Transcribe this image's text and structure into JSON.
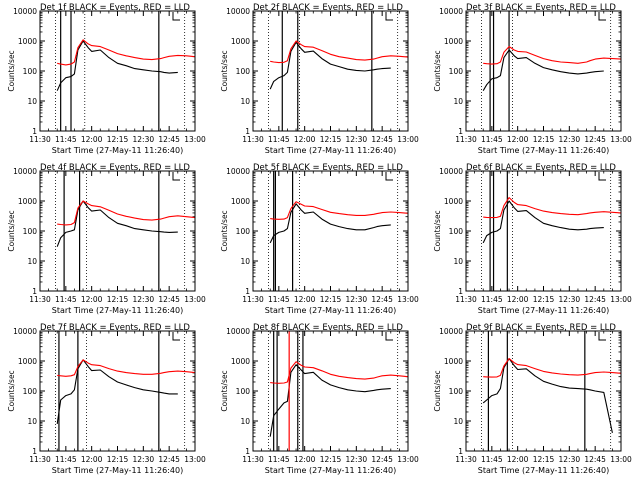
{
  "figure": {
    "xtick_labels": [
      "11:30",
      "11:45",
      "12:00",
      "12:15",
      "12:30",
      "12:45",
      "13:00"
    ],
    "ytick_labels": [
      "1",
      "10",
      "100",
      "1000",
      "10000"
    ],
    "ylabel": "Counts/sec",
    "xlabel": "Start Time (27-May-11 11:26:40)",
    "legend_text": "BLACK = Events, RED = LLD",
    "colors": {
      "events": "#000000",
      "lld": "#ff0000",
      "background": "#ffffff",
      "markers": "#000000"
    }
  },
  "chart_data": [
    {
      "type": "line",
      "title": "Det 1f BLACK = Events, RED = LLD",
      "xlabel": "Start Time (27-May-11 11:26:40)",
      "ylabel": "Counts/sec",
      "x_unit": "minutes after 11:30",
      "yscale": "log",
      "xlim": [
        0,
        90
      ],
      "ylim": [
        1,
        10000
      ],
      "x": [
        10,
        12,
        15,
        18,
        20,
        22,
        25,
        28,
        30,
        35,
        40,
        45,
        50,
        55,
        60,
        65,
        70,
        72,
        75,
        80,
        85,
        90
      ],
      "series": [
        {
          "name": "Events",
          "color": "#000000",
          "values": [
            22,
            40,
            60,
            65,
            80,
            500,
            1000,
            600,
            450,
            500,
            280,
            180,
            150,
            120,
            110,
            100,
            95,
            90,
            85,
            90,
            null,
            null
          ]
        },
        {
          "name": "LLD",
          "color": "#ff0000",
          "values": [
            180,
            170,
            160,
            170,
            200,
            600,
            1100,
            800,
            700,
            650,
            500,
            380,
            320,
            280,
            250,
            240,
            260,
            280,
            310,
            330,
            320,
            300
          ]
        }
      ],
      "vlines_solid": [
        12,
        18,
        69
      ],
      "vlines_dotted": [
        9,
        26,
        84
      ]
    },
    {
      "type": "line",
      "title": "Det 2f BLACK = Events, RED = LLD",
      "xlabel": "Start Time (27-May-11 11:26:40)",
      "ylabel": "Counts/sec",
      "x_unit": "minutes after 11:30",
      "yscale": "log",
      "xlim": [
        0,
        90
      ],
      "ylim": [
        1,
        10000
      ],
      "x": [
        10,
        12,
        15,
        18,
        20,
        22,
        25,
        28,
        30,
        35,
        40,
        45,
        50,
        55,
        60,
        65,
        70,
        72,
        75,
        80,
        85,
        90
      ],
      "series": [
        {
          "name": "Events",
          "color": "#000000",
          "values": [
            25,
            45,
            60,
            70,
            90,
            450,
            900,
            550,
            420,
            460,
            260,
            170,
            140,
            115,
            105,
            100,
            110,
            115,
            120,
            125,
            null,
            null
          ]
        },
        {
          "name": "LLD",
          "color": "#ff0000",
          "values": [
            210,
            200,
            190,
            195,
            220,
            550,
            1000,
            750,
            650,
            620,
            480,
            360,
            300,
            270,
            240,
            230,
            250,
            270,
            300,
            320,
            310,
            290
          ]
        }
      ],
      "vlines_solid": [
        17,
        26,
        69
      ],
      "vlines_dotted": [
        9,
        27,
        84
      ]
    },
    {
      "type": "line",
      "title": "Det 3f BLACK = Events, RED = LLD",
      "xlabel": "Start Time (27-May-11 11:26:40)",
      "ylabel": "Counts/sec",
      "x_unit": "minutes after 11:30",
      "yscale": "log",
      "xlim": [
        0,
        90
      ],
      "ylim": [
        1,
        10000
      ],
      "x": [
        10,
        12,
        15,
        18,
        20,
        22,
        25,
        28,
        30,
        35,
        40,
        45,
        50,
        55,
        60,
        65,
        70,
        72,
        75,
        80,
        85,
        90
      ],
      "series": [
        {
          "name": "Events",
          "color": "#000000",
          "values": [
            22,
            35,
            55,
            60,
            70,
            280,
            500,
            320,
            260,
            280,
            180,
            130,
            110,
            95,
            85,
            80,
            85,
            90,
            95,
            100,
            null,
            null
          ]
        },
        {
          "name": "LLD",
          "color": "#ff0000",
          "values": [
            180,
            175,
            170,
            175,
            200,
            420,
            650,
            500,
            450,
            430,
            330,
            260,
            220,
            200,
            190,
            180,
            200,
            220,
            250,
            270,
            260,
            250
          ]
        }
      ],
      "vlines_solid": [
        14,
        16,
        25
      ],
      "vlines_dotted": [
        9,
        27,
        84
      ]
    },
    {
      "type": "line",
      "title": "Det 4f BLACK = Events, RED = LLD",
      "xlabel": "Start Time (27-May-11 11:26:40)",
      "ylabel": "Counts/sec",
      "x_unit": "minutes after 11:30",
      "yscale": "log",
      "xlim": [
        0,
        90
      ],
      "ylim": [
        1,
        10000
      ],
      "x": [
        10,
        12,
        15,
        18,
        20,
        22,
        25,
        28,
        30,
        35,
        40,
        45,
        50,
        55,
        60,
        65,
        70,
        72,
        75,
        80,
        85,
        90
      ],
      "series": [
        {
          "name": "Events",
          "color": "#000000",
          "values": [
            30,
            60,
            90,
            100,
            110,
            500,
            1000,
            600,
            460,
            500,
            280,
            180,
            150,
            120,
            110,
            100,
            95,
            92,
            90,
            92,
            null,
            null
          ]
        },
        {
          "name": "LLD",
          "color": "#ff0000",
          "values": [
            170,
            165,
            160,
            165,
            190,
            580,
            1000,
            800,
            700,
            640,
            490,
            370,
            310,
            270,
            240,
            230,
            250,
            270,
            300,
            320,
            300,
            280
          ]
        }
      ],
      "vlines_solid": [
        14,
        23,
        69
      ],
      "vlines_dotted": [
        9,
        27,
        84
      ]
    },
    {
      "type": "line",
      "title": "Det 5f BLACK = Events, RED = LLD",
      "xlabel": "Start Time (27-May-11 11:26:40)",
      "ylabel": "Counts/sec",
      "x_unit": "minutes after 11:30",
      "yscale": "log",
      "xlim": [
        0,
        90
      ],
      "ylim": [
        1,
        10000
      ],
      "x": [
        10,
        12,
        15,
        18,
        20,
        22,
        25,
        28,
        30,
        35,
        40,
        45,
        50,
        55,
        60,
        65,
        70,
        72,
        75,
        80,
        85,
        90
      ],
      "series": [
        {
          "name": "Events",
          "color": "#000000",
          "values": [
            40,
            70,
            90,
            100,
            120,
            420,
            800,
            500,
            390,
            430,
            250,
            170,
            140,
            120,
            110,
            110,
            130,
            140,
            150,
            160,
            null,
            null
          ]
        },
        {
          "name": "LLD",
          "color": "#ff0000",
          "values": [
            260,
            250,
            245,
            250,
            280,
            560,
            950,
            780,
            680,
            650,
            520,
            420,
            380,
            350,
            330,
            330,
            360,
            380,
            410,
            430,
            410,
            390
          ]
        }
      ],
      "vlines_solid": [
        12,
        13,
        23
      ],
      "vlines_dotted": [
        9,
        27,
        84
      ]
    },
    {
      "type": "line",
      "title": "Det 6f BLACK = Events, RED = LLD",
      "xlabel": "Start Time (27-May-11 11:26:40)",
      "ylabel": "Counts/sec",
      "x_unit": "minutes after 11:30",
      "yscale": "log",
      "xlim": [
        0,
        90
      ],
      "ylim": [
        1,
        10000
      ],
      "x": [
        10,
        12,
        15,
        18,
        20,
        22,
        25,
        28,
        30,
        35,
        40,
        45,
        50,
        55,
        60,
        65,
        70,
        72,
        75,
        80,
        85,
        90
      ],
      "series": [
        {
          "name": "Events",
          "color": "#000000",
          "values": [
            40,
            70,
            90,
            100,
            120,
            500,
            1000,
            600,
            450,
            480,
            280,
            180,
            150,
            130,
            115,
            110,
            115,
            120,
            125,
            130,
            null,
            null
          ]
        },
        {
          "name": "LLD",
          "color": "#ff0000",
          "values": [
            290,
            285,
            280,
            285,
            310,
            700,
            1300,
            900,
            760,
            700,
            560,
            460,
            410,
            380,
            360,
            350,
            380,
            400,
            420,
            440,
            420,
            400
          ]
        }
      ],
      "vlines_solid": [
        14,
        16,
        24
      ],
      "vlines_dotted": [
        9,
        27,
        84
      ]
    },
    {
      "type": "line",
      "title": "Det 7f BLACK = Events, RED = LLD",
      "xlabel": "Start Time (27-May-11 11:26:40)",
      "ylabel": "Counts/sec",
      "x_unit": "minutes after 11:30",
      "yscale": "log",
      "xlim": [
        0,
        90
      ],
      "ylim": [
        1,
        10000
      ],
      "x": [
        10,
        12,
        15,
        18,
        20,
        22,
        25,
        28,
        30,
        35,
        40,
        45,
        50,
        55,
        60,
        65,
        70,
        72,
        75,
        80,
        85,
        90
      ],
      "series": [
        {
          "name": "Events",
          "color": "#000000",
          "values": [
            8,
            50,
            70,
            80,
            110,
            550,
            1100,
            650,
            480,
            500,
            300,
            200,
            160,
            130,
            110,
            100,
            90,
            85,
            80,
            80,
            null,
            null
          ]
        },
        {
          "name": "LLD",
          "color": "#ff0000",
          "values": [
            330,
            320,
            310,
            320,
            350,
            650,
            1100,
            850,
            750,
            700,
            560,
            460,
            410,
            380,
            360,
            360,
            390,
            410,
            440,
            460,
            440,
            410
          ]
        }
      ],
      "vlines_solid": [
        11,
        22,
        69
      ],
      "vlines_dotted": [
        9,
        27,
        84
      ]
    },
    {
      "type": "line",
      "title": "Det 8f BLACK = Events, RED = LLD",
      "xlabel": "Start Time (27-May-11 11:26:40)",
      "ylabel": "Counts/sec",
      "x_unit": "minutes after 11:30",
      "yscale": "log",
      "xlim": [
        0,
        90
      ],
      "ylim": [
        1,
        10000
      ],
      "x": [
        10,
        12,
        15,
        18,
        20,
        22,
        25,
        28,
        30,
        35,
        40,
        45,
        50,
        55,
        60,
        65,
        70,
        72,
        75,
        80,
        85,
        90
      ],
      "series": [
        {
          "name": "Events",
          "color": "#000000",
          "values": [
            3,
            15,
            25,
            40,
            45,
            420,
            750,
            500,
            380,
            420,
            230,
            160,
            130,
            110,
            100,
            95,
            105,
            110,
            115,
            120,
            null,
            null
          ]
        },
        {
          "name": "LLD",
          "color": "#ff0000",
          "values": [
            190,
            185,
            180,
            185,
            200,
            580,
            950,
            720,
            630,
            600,
            470,
            360,
            310,
            280,
            260,
            250,
            270,
            290,
            320,
            340,
            320,
            300
          ]
        }
      ],
      "vlines_solid": [
        12,
        14,
        26,
        29
      ],
      "vlines_dotted": [
        9,
        27,
        84
      ],
      "spikes": [
        {
          "x": 21,
          "value": 10000,
          "color": "#ff0000"
        }
      ]
    },
    {
      "type": "line",
      "title": "Det 9f BLACK = Events, RED = LLD",
      "xlabel": "Start Time (27-May-11 11:26:40)",
      "ylabel": "Counts/sec",
      "x_unit": "minutes after 11:30",
      "yscale": "log",
      "xlim": [
        0,
        90
      ],
      "ylim": [
        1,
        10000
      ],
      "x": [
        10,
        12,
        15,
        18,
        20,
        22,
        25,
        28,
        30,
        35,
        40,
        45,
        50,
        55,
        60,
        65,
        70,
        72,
        75,
        80,
        85,
        90
      ],
      "series": [
        {
          "name": "Events",
          "color": "#000000",
          "values": [
            40,
            50,
            70,
            80,
            120,
            600,
            1200,
            700,
            520,
            550,
            320,
            210,
            170,
            140,
            125,
            120,
            115,
            110,
            100,
            90,
            4,
            null
          ]
        },
        {
          "name": "LLD",
          "color": "#ff0000",
          "values": [
            300,
            295,
            290,
            295,
            330,
            680,
            1200,
            880,
            760,
            700,
            560,
            450,
            400,
            370,
            350,
            340,
            360,
            380,
            410,
            430,
            410,
            390
          ]
        }
      ],
      "vlines_solid": [
        13,
        24,
        69
      ],
      "vlines_dotted": [
        9,
        27,
        84
      ]
    }
  ]
}
